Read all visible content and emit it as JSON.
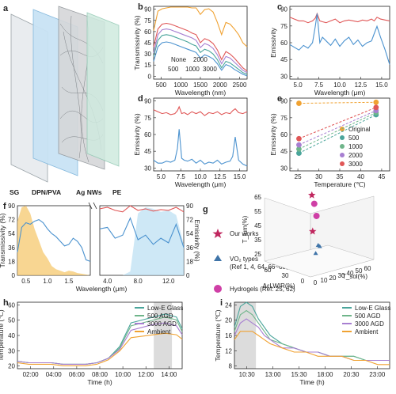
{
  "figure": {
    "panel_labels": [
      "a",
      "b",
      "c",
      "d",
      "e",
      "f",
      "g",
      "h",
      "i"
    ],
    "panel_a": {
      "layers": [
        "SG",
        "DPN/PVA",
        "Ag NWs",
        "PE"
      ]
    },
    "colors": {
      "orange": "#f0a232",
      "red": "#e05757",
      "blue": "#4b92cf",
      "teal": "#4aa59b",
      "purple": "#a77fd1",
      "green": "#6fb58a",
      "yellow": "#f5c86e",
      "lightblue": "#b9def2",
      "star": "#c0265e",
      "vo2": "#3f74a8",
      "sphere": "#cf3fa6"
    }
  },
  "chart_data": [
    {
      "panel": "b",
      "type": "line",
      "ylabel": "Transmissivity (%)",
      "xlabel": "Wavelength (nm)",
      "xlim": [
        300,
        2500
      ],
      "ylim": [
        0,
        90
      ],
      "xticks": [
        "500",
        "1000",
        "1500",
        "2000",
        "2500"
      ],
      "yticks": [
        "0",
        "15",
        "30",
        "45",
        "60",
        "75",
        "90"
      ],
      "annotations": [
        "None",
        "2000",
        "500",
        "1000",
        "3000"
      ],
      "x": [
        300,
        400,
        500,
        600,
        700,
        800,
        900,
        1000,
        1100,
        1200,
        1300,
        1400,
        1500,
        1600,
        1700,
        1800,
        1900,
        2000,
        2100,
        2200,
        2300,
        2400,
        2500
      ],
      "series": [
        {
          "name": "None",
          "color": "orange",
          "values": [
            60,
            84,
            87,
            88,
            89,
            89,
            89,
            89,
            89,
            88,
            88,
            80,
            86,
            87,
            83,
            70,
            55,
            70,
            68,
            62,
            55,
            45,
            40
          ]
        },
        {
          "name": "500",
          "color": "red",
          "values": [
            40,
            62,
            68,
            69,
            68,
            66,
            64,
            62,
            60,
            57,
            55,
            45,
            50,
            48,
            44,
            36,
            24,
            34,
            31,
            26,
            20,
            14,
            10
          ]
        },
        {
          "name": "1000",
          "color": "purple",
          "values": [
            32,
            55,
            61,
            62,
            61,
            59,
            57,
            55,
            53,
            51,
            48,
            39,
            44,
            42,
            38,
            30,
            19,
            28,
            26,
            21,
            16,
            11,
            8
          ]
        },
        {
          "name": "2000",
          "color": "teal",
          "values": [
            28,
            48,
            54,
            55,
            54,
            52,
            50,
            48,
            46,
            43,
            41,
            33,
            37,
            35,
            31,
            24,
            14,
            22,
            20,
            16,
            12,
            8,
            6
          ]
        },
        {
          "name": "3000",
          "color": "blue",
          "values": [
            22,
            40,
            45,
            46,
            45,
            43,
            41,
            39,
            37,
            35,
            33,
            26,
            30,
            28,
            25,
            19,
            11,
            18,
            16,
            12,
            9,
            6,
            4
          ]
        }
      ]
    },
    {
      "panel": "c",
      "type": "line",
      "ylabel": "Emissivity",
      "xlabel": "Wavelength (μm)",
      "xlim": [
        4,
        15
      ],
      "ylim": [
        20,
        100
      ],
      "xticks": [
        "5.0",
        "7.5",
        "10.0",
        "12.5",
        "15.0"
      ],
      "yticks": [
        "30",
        "45",
        "60",
        "75",
        "90"
      ],
      "x": [
        4,
        4.5,
        5,
        5.5,
        6,
        6.5,
        6.8,
        7,
        7.3,
        7.6,
        8,
        8.5,
        9,
        9.5,
        10,
        10.5,
        11,
        11.5,
        12,
        12.5,
        13,
        13.3,
        13.6,
        14,
        14.5,
        15
      ],
      "series": [
        {
          "color": "red",
          "values": [
            88,
            86,
            84,
            84,
            82,
            84,
            87,
            92,
            84,
            83,
            82,
            84,
            86,
            82,
            84,
            85,
            84,
            83,
            85,
            84,
            86,
            84,
            88,
            86,
            85,
            84
          ]
        },
        {
          "color": "blue",
          "values": [
            58,
            55,
            52,
            57,
            54,
            60,
            78,
            92,
            60,
            66,
            62,
            57,
            64,
            56,
            62,
            66,
            58,
            63,
            56,
            60,
            62,
            70,
            78,
            66,
            52,
            36
          ]
        }
      ]
    },
    {
      "panel": "d",
      "type": "line",
      "ylabel": "Emissivity (%)",
      "xlabel": "Wavelength (μm)",
      "xlim": [
        4,
        15
      ],
      "ylim": [
        25,
        100
      ],
      "xticks": [
        "5.0",
        "7.5",
        "10.0",
        "12.5",
        "15.0"
      ],
      "yticks": [
        "30",
        "45",
        "60",
        "75",
        "90"
      ],
      "x": [
        4,
        4.5,
        5,
        5.5,
        6,
        6.5,
        6.8,
        7,
        7.3,
        7.6,
        8,
        8.5,
        9,
        9.5,
        10,
        10.5,
        11,
        11.5,
        12,
        12.5,
        13,
        13.3,
        13.6,
        14,
        14.5,
        15
      ],
      "series": [
        {
          "color": "red",
          "values": [
            88,
            86,
            84,
            85,
            83,
            84,
            87,
            91,
            84,
            85,
            83,
            86,
            84,
            86,
            82,
            85,
            84,
            86,
            83,
            85,
            84,
            87,
            89,
            85,
            84,
            86
          ]
        },
        {
          "color": "blue",
          "values": [
            36,
            33,
            33,
            35,
            34,
            36,
            48,
            68,
            38,
            36,
            35,
            37,
            33,
            36,
            32,
            34,
            33,
            36,
            32,
            34,
            35,
            40,
            60,
            36,
            32,
            30
          ]
        }
      ]
    },
    {
      "panel": "e",
      "type": "scatter",
      "ylabel": "Emissivity (%)",
      "xlabel": "Temperature (℃)",
      "xlim": [
        23,
        45
      ],
      "ylim": [
        25,
        95
      ],
      "xticks": [
        "25",
        "30",
        "35",
        "40",
        "45"
      ],
      "yticks": [
        "30",
        "45",
        "60",
        "75",
        "90"
      ],
      "x": [
        25,
        42
      ],
      "series": [
        {
          "name": "Original",
          "color": "orange",
          "values": [
            90,
            91
          ]
        },
        {
          "name": "500",
          "color": "teal",
          "values": [
            42,
            79
          ]
        },
        {
          "name": "1000",
          "color": "green",
          "values": [
            46,
            81
          ]
        },
        {
          "name": "2000",
          "color": "purple",
          "values": [
            50,
            83
          ]
        },
        {
          "name": "3000",
          "color": "red",
          "values": [
            56,
            86
          ]
        }
      ]
    },
    {
      "panel": "f",
      "type": "area",
      "ylabel_left": "Transmissivity (%)",
      "ylabel_right": "Emissivity (%)",
      "xlabel": "Wavelength (μm)",
      "xticks": [
        "0.5",
        "1.0",
        "1.5",
        "4.0",
        "8.0",
        "12.0"
      ],
      "yticks": [
        "0",
        "18",
        "36",
        "54",
        "72",
        "90"
      ],
      "ylim": [
        0,
        90
      ],
      "left_x": [
        0.3,
        0.4,
        0.5,
        0.6,
        0.7,
        0.8,
        0.9,
        1.0,
        1.1,
        1.2,
        1.3,
        1.4,
        1.5,
        1.6,
        1.7,
        1.8,
        1.9,
        2.0
      ],
      "left_series": [
        {
          "color": "blue",
          "values": [
            30,
            62,
            68,
            66,
            70,
            72,
            68,
            60,
            54,
            50,
            44,
            38,
            40,
            48,
            44,
            36,
            20,
            18
          ]
        },
        {
          "color": "yellow",
          "values": [
            70,
            88,
            90,
            80,
            60,
            45,
            30,
            22,
            12,
            8,
            6,
            4,
            6,
            5,
            3,
            2,
            1,
            0
          ]
        }
      ],
      "right_x": [
        3,
        4,
        5,
        6,
        7,
        8,
        9,
        10,
        11,
        12,
        13,
        14
      ],
      "right_series": [
        {
          "color": "red",
          "values": [
            86,
            88,
            84,
            82,
            90,
            84,
            86,
            83,
            85,
            84,
            88,
            82
          ]
        },
        {
          "color": "blue",
          "values": [
            60,
            62,
            48,
            52,
            74,
            46,
            52,
            40,
            48,
            42,
            66,
            36
          ]
        },
        {
          "color": "lightblue",
          "values": [
            0,
            0,
            0,
            0,
            5,
            80,
            88,
            86,
            82,
            84,
            78,
            40
          ]
        }
      ]
    },
    {
      "panel": "g",
      "type": "scatter",
      "legend": [
        "Our works",
        "VO₂ types",
        "(Ref 1, 4, 64, 66~68, 70~76 )",
        "Hydrogels (Ref: 25, 62)"
      ],
      "axes": [
        "T_lum(%)",
        "ΔεLWIR(%)",
        "T_sol(%)"
      ],
      "zticks": [
        "65",
        "55",
        "45",
        "35",
        "25"
      ],
      "xticks": [
        "0",
        "10",
        "20",
        "30",
        "40",
        "50",
        "60"
      ],
      "yticks": [
        "0",
        "30",
        "60"
      ],
      "points": [
        {
          "group": "Our works",
          "x": 45,
          "y": 55,
          "z": 62
        },
        {
          "group": "Our works",
          "x": 30,
          "y": 35,
          "z": 44
        },
        {
          "group": "Hydrogels",
          "x": 38,
          "y": 40,
          "z": 52
        },
        {
          "group": "Hydrogels",
          "x": 42,
          "y": 48,
          "z": 58
        },
        {
          "group": "VO₂ types",
          "x": 20,
          "y": 15,
          "z": 40
        },
        {
          "group": "VO₂ types",
          "x": 24,
          "y": 18,
          "z": 38
        },
        {
          "group": "VO₂ types",
          "x": 15,
          "y": 12,
          "z": 36
        }
      ]
    },
    {
      "panel": "h",
      "type": "line",
      "ylabel": "Temperature (℃)",
      "xlabel": "Time (h)",
      "ylim": [
        15,
        60
      ],
      "yticks": [
        "20",
        "30",
        "40",
        "50",
        "60"
      ],
      "xticks": [
        "02:00",
        "04:00",
        "06:00",
        "08:00",
        "10:00",
        "12:00",
        "14:00"
      ],
      "x": [
        0,
        1,
        2,
        3,
        4,
        5,
        6,
        7,
        8,
        9,
        10,
        11,
        12,
        13,
        14,
        14.5
      ],
      "series": [
        {
          "name": "Low-E Glass",
          "color": "teal",
          "values": [
            20,
            19,
            19,
            19,
            18,
            18,
            18,
            19,
            22,
            30,
            46,
            48,
            50,
            52,
            50,
            42
          ]
        },
        {
          "name": "500 AGD",
          "color": "green",
          "values": [
            20,
            19,
            19,
            19,
            18,
            18,
            18,
            19,
            22,
            29,
            44,
            46,
            48,
            50,
            48,
            40
          ]
        },
        {
          "name": "3000 AGD",
          "color": "purple",
          "values": [
            20,
            19,
            19,
            19,
            18,
            18,
            18,
            19,
            22,
            28,
            41,
            43,
            45,
            46,
            44,
            38
          ]
        },
        {
          "name": "Ambient",
          "color": "orange",
          "values": [
            19,
            18,
            18,
            18,
            17,
            17,
            17,
            18,
            21,
            27,
            36,
            37,
            38,
            39,
            38,
            35
          ]
        }
      ]
    },
    {
      "panel": "i",
      "type": "line",
      "ylabel": "Temperature (℃)",
      "xlabel": "Time (h)",
      "ylim": [
        8,
        24
      ],
      "yticks": [
        "8",
        "12",
        "16",
        "20",
        "24"
      ],
      "xticks": [
        "10:30",
        "13:00",
        "15:30",
        "18:00",
        "20:30",
        "23:00"
      ],
      "x": [
        0,
        0.5,
        1,
        1.5,
        2,
        2.5,
        3,
        4,
        5,
        6,
        7,
        8,
        9,
        10,
        11,
        12,
        13
      ],
      "series": [
        {
          "name": "Low-E Glass",
          "color": "teal",
          "values": [
            18,
            23,
            24,
            23,
            20,
            18,
            16,
            14,
            13,
            12,
            12,
            11,
            11,
            11,
            10,
            10,
            10
          ]
        },
        {
          "name": "500 AGD",
          "color": "green",
          "values": [
            17,
            21,
            22,
            21,
            19,
            17,
            15,
            14,
            13,
            12,
            12,
            11,
            11,
            11,
            10,
            10,
            10
          ]
        },
        {
          "name": "3000 AGD",
          "color": "purple",
          "values": [
            16,
            19,
            20,
            19,
            18,
            16,
            15,
            13,
            13,
            12,
            12,
            11,
            11,
            10,
            10,
            10,
            10
          ]
        },
        {
          "name": "Ambient",
          "color": "orange",
          "values": [
            15,
            17,
            17,
            17,
            16,
            15,
            14,
            13,
            12,
            12,
            11,
            11,
            11,
            10,
            10,
            9,
            9
          ]
        }
      ]
    }
  ]
}
